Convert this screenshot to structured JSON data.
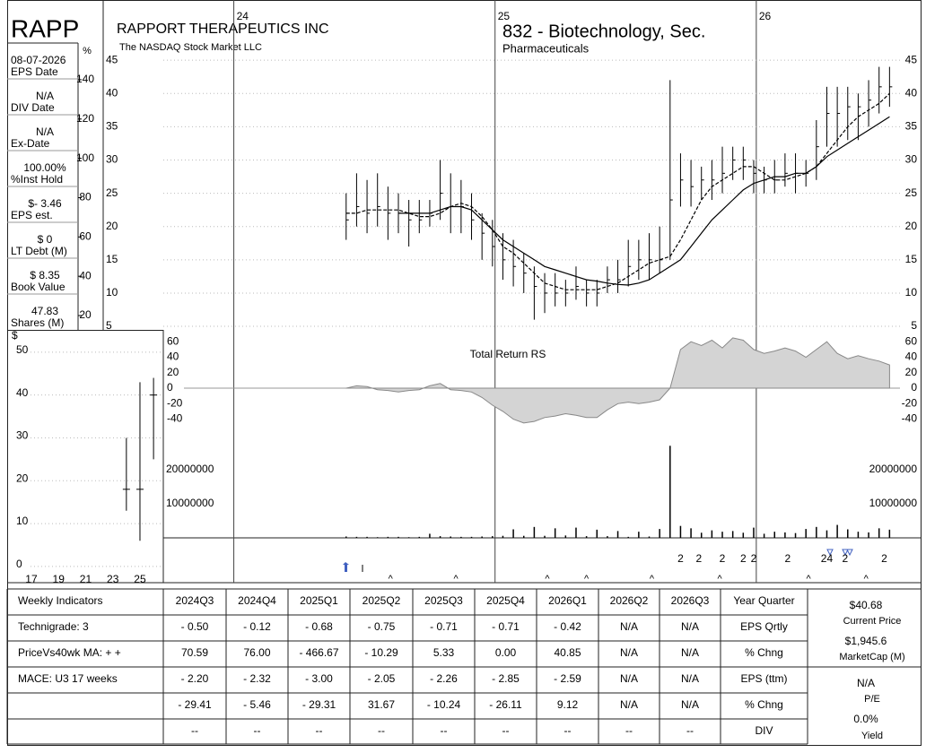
{
  "header": {
    "ticker": "RAPP",
    "company": "RAPPORT THERAPEUTICS INC",
    "exchange": "The NASDAQ Stock Market LLC",
    "industry": "832 - Biotechnology, Sec.",
    "sector": "Pharmaceuticals"
  },
  "side_panel": [
    {
      "value": "08-07-2026",
      "label": "EPS Date"
    },
    {
      "value": "N/A",
      "label": "DIV Date"
    },
    {
      "value": "N/A",
      "label": "Ex-Date"
    },
    {
      "value": "100.00%",
      "label": "%Inst Hold"
    },
    {
      "value": "$- 3.46",
      "label": "EPS est."
    },
    {
      "value": "$ 0",
      "label": "LT Debt (M)"
    },
    {
      "value": "$ 8.35",
      "label": "Book Value"
    },
    {
      "value": "47.83",
      "label": "Shares (M)"
    }
  ],
  "chart_data": [
    {
      "type": "ohlc",
      "color": "#000000",
      "x": [
        2024.43,
        2024.47,
        2024.51,
        2024.55,
        2024.59,
        2024.63,
        2024.67,
        2024.71,
        2024.75,
        2024.79,
        2024.83,
        2024.87,
        2024.91,
        2024.95,
        2024.99,
        2025.03,
        2025.07,
        2025.11,
        2025.15,
        2025.19,
        2025.23,
        2025.27,
        2025.31,
        2025.35,
        2025.39,
        2025.43,
        2025.47,
        2025.51,
        2025.55,
        2025.59,
        2025.63,
        2025.67,
        2025.71,
        2025.75,
        2025.79,
        2025.83,
        2025.87,
        2025.91,
        2025.95,
        2025.99,
        2026.03,
        2026.07,
        2026.11,
        2026.15,
        2026.19,
        2026.23,
        2026.27,
        2026.31,
        2026.35,
        2026.39,
        2026.43,
        2026.47,
        2026.51
      ],
      "high": [
        25,
        28,
        27,
        28,
        26,
        25,
        24,
        24,
        24,
        30,
        28,
        27,
        25,
        22,
        21,
        19,
        18,
        16,
        14,
        13,
        13,
        12,
        14,
        12,
        12,
        14,
        15,
        18,
        18,
        19,
        20,
        42,
        31,
        30,
        29,
        30,
        32,
        32,
        32,
        30,
        29,
        30,
        31,
        31,
        30,
        36,
        41,
        41,
        41,
        40,
        42,
        44,
        44
      ],
      "low": [
        18,
        20,
        19,
        20,
        18,
        19,
        17,
        19,
        20,
        21,
        19,
        19,
        18,
        15,
        14,
        12,
        11,
        10,
        6,
        7,
        8,
        8,
        9,
        8,
        8,
        10,
        10,
        11,
        12,
        12,
        13,
        15,
        23,
        23,
        24,
        24,
        25,
        27,
        27,
        25,
        25,
        25,
        26,
        25,
        26,
        27,
        32,
        32,
        33,
        33,
        35,
        37,
        38
      ],
      "close": [
        21,
        23,
        22,
        23,
        22,
        22,
        21,
        21,
        22,
        25,
        23,
        23,
        21,
        19,
        17,
        15,
        14,
        13,
        11,
        10,
        10,
        10,
        11,
        10,
        10,
        12,
        12,
        14,
        15,
        15,
        15,
        24,
        27,
        26,
        27,
        27,
        28,
        30,
        30,
        28,
        27,
        27,
        28,
        28,
        28,
        32,
        37,
        37,
        38,
        38,
        39,
        41,
        41
      ],
      "lines": [
        {
          "dash": true,
          "values": [
            22,
            22,
            22.5,
            22.5,
            22.5,
            22.5,
            22,
            21.5,
            21.5,
            22,
            23,
            23.5,
            23,
            21.5,
            19.5,
            17,
            16,
            14.5,
            13,
            11.5,
            11,
            10.5,
            10.5,
            10.5,
            10.5,
            11,
            11.5,
            12.5,
            13.5,
            14.5,
            15,
            15.5,
            18,
            21,
            24,
            26,
            27,
            28,
            29,
            29,
            28,
            27,
            27,
            27.5,
            28,
            29,
            31,
            33,
            35,
            36.5,
            37.5,
            38.5,
            40
          ]
        },
        {
          "dash": false,
          "values": [
            null,
            null,
            null,
            null,
            null,
            22,
            22,
            22,
            22,
            22.5,
            23,
            23,
            22.5,
            21,
            19.5,
            18,
            17,
            16,
            15,
            14,
            13.5,
            13,
            12.5,
            12,
            11.8,
            11.5,
            11.3,
            11.2,
            11.5,
            12,
            13,
            14,
            15,
            17,
            19,
            21,
            22.5,
            24,
            25.5,
            26.5,
            27,
            27.5,
            27.5,
            28,
            28,
            29,
            30.5,
            31.5,
            32.5,
            33.5,
            34.5,
            35.5,
            36.5
          ]
        }
      ],
      "xlim": [
        2023.5,
        2026.55
      ],
      "xticks": [
        {
          "value": 2024,
          "label": "24"
        },
        {
          "value": 2025,
          "label": "25"
        },
        {
          "value": 2026,
          "label": "26"
        }
      ],
      "ylim": [
        4.2,
        52.7
      ],
      "yticks": [
        45,
        40,
        35,
        30,
        25,
        20,
        15,
        10,
        5
      ],
      "y2label": "%",
      "y2lim": [
        11.8,
        176
      ],
      "y2ticks": [
        140,
        120,
        100,
        80,
        60,
        40,
        20
      ]
    },
    {
      "type": "area",
      "title": "Total Return RS",
      "color": "#d4d4d4",
      "values": [
        0,
        3,
        2,
        -2,
        -3,
        -5,
        -3,
        -2,
        3,
        6,
        -2,
        -3,
        -5,
        -12,
        -22,
        -30,
        -40,
        -45,
        -43,
        -38,
        -36,
        -33,
        -35,
        -38,
        -38,
        -28,
        -20,
        -18,
        -20,
        -18,
        -15,
        0,
        50,
        60,
        55,
        62,
        52,
        65,
        62,
        50,
        45,
        48,
        52,
        48,
        40,
        50,
        60,
        45,
        38,
        42,
        38,
        35,
        30
      ],
      "ylim": [
        -66,
        73
      ],
      "yticks": [
        60,
        40,
        20,
        0,
        -20,
        -40
      ]
    },
    {
      "type": "bar",
      "color": "#000000",
      "values": [
        400000,
        300000,
        300000,
        200000,
        300000,
        300000,
        200000,
        300000,
        1200000,
        500000,
        400000,
        300000,
        300000,
        400000,
        500000,
        600000,
        2500000,
        600000,
        3200000,
        600000,
        2800000,
        700000,
        3000000,
        500000,
        2400000,
        500000,
        2000000,
        300000,
        1800000,
        400000,
        2600000,
        27000000,
        3500000,
        2800000,
        1500000,
        2200000,
        1800000,
        2000000,
        1500000,
        3000000,
        1200000,
        1800000,
        1600000,
        1400000,
        2600000,
        3200000,
        2200000,
        3800000,
        2500000,
        1800000,
        1600000,
        2800000,
        2400000
      ],
      "ylim": [
        0,
        27600000
      ],
      "yticks": [
        20000000,
        10000000
      ],
      "events": [
        {
          "x": 2025.71,
          "label": "2"
        },
        {
          "x": 2025.78,
          "label": "2"
        },
        {
          "x": 2025.87,
          "label": "2"
        },
        {
          "x": 2025.95,
          "label": "2"
        },
        {
          "x": 2025.99,
          "label": "2"
        },
        {
          "x": 2026.12,
          "label": "2"
        },
        {
          "x": 2026.27,
          "label": "24"
        },
        {
          "x": 2026.34,
          "label": "2"
        },
        {
          "x": 2026.49,
          "label": "2"
        }
      ],
      "carets": [
        {
          "x": 2024.6,
          "label": "^"
        },
        {
          "x": 2024.85,
          "label": "^"
        },
        {
          "x": 2025.2,
          "label": "^"
        },
        {
          "x": 2025.35,
          "label": "^"
        },
        {
          "x": 2025.6,
          "label": "^"
        },
        {
          "x": 2025.86,
          "label": "^"
        },
        {
          "x": 2026.2,
          "label": "^"
        },
        {
          "x": 2026.42,
          "label": "^"
        }
      ]
    },
    {
      "type": "ohlc",
      "color": "#000000",
      "ylabel": "$",
      "x": [
        24,
        25,
        26
      ],
      "high": [
        30,
        43,
        44
      ],
      "low": [
        13,
        6,
        25
      ],
      "close": [
        18,
        18,
        40
      ],
      "xlim": [
        15.35,
        26.72
      ],
      "xticks": [
        17,
        19,
        21,
        23,
        25
      ],
      "ylim": [
        -1.7,
        55.2
      ],
      "yticks": [
        50,
        40,
        30,
        20,
        10,
        0
      ]
    }
  ],
  "table": {
    "header": [
      "Weekly Indicators",
      "2024Q3",
      "2024Q4",
      "2025Q1",
      "2025Q2",
      "2025Q3",
      "2025Q4",
      "2026Q1",
      "2026Q2",
      "2026Q3",
      "Year Quarter"
    ],
    "rows": [
      [
        "Technigrade: 3",
        "- 0.50",
        "- 0.12",
        "- 0.68",
        "- 0.75",
        "- 0.71",
        "- 0.71",
        "- 0.42",
        "N/A",
        "N/A",
        "EPS Qrtly"
      ],
      [
        "PriceVs40wk MA:  + +",
        "70.59",
        "76.00",
        "- 466.67",
        "- 10.29",
        "5.33",
        "0.00",
        "40.85",
        "N/A",
        "N/A",
        "% Chng"
      ],
      [
        "MACE: U3  17 weeks",
        "- 2.20",
        "- 2.32",
        "- 3.00",
        "- 2.05",
        "- 2.26",
        "- 2.85",
        "- 2.59",
        "N/A",
        "N/A",
        "EPS (ttm)"
      ],
      [
        null,
        "- 29.41",
        "- 5.46",
        "- 29.31",
        "31.67",
        "- 10.24",
        "- 26.11",
        "9.12",
        "N/A",
        "N/A",
        "% Chng"
      ],
      [
        null,
        "--",
        "--",
        "--",
        "--",
        "--",
        "--",
        "--",
        "--",
        "--",
        "DIV"
      ]
    ]
  },
  "summary": [
    {
      "value": "$40.68",
      "label": "Current Price"
    },
    {
      "value": "$1,945.6",
      "label": "MarketCap (M)"
    },
    {
      "value": "N/A",
      "label": "P/E"
    },
    {
      "value": "0.0%",
      "label": "Yield"
    }
  ]
}
